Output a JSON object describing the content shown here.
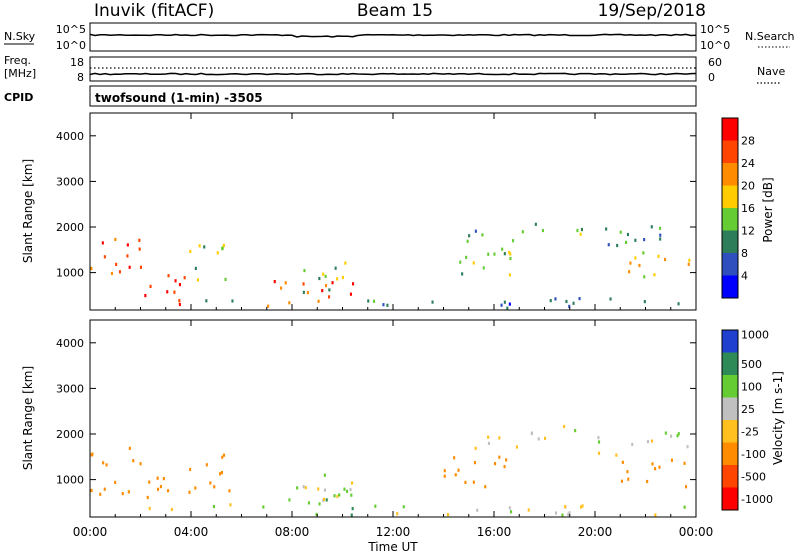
{
  "header": {
    "station": "Inuvik (fitACF)",
    "beam": "Beam 15",
    "date": "19/Sep/2018"
  },
  "nsky": {
    "label": "N.Sky",
    "top_tick": "10^5",
    "bottom_tick": "10^0"
  },
  "nsearch": {
    "label": "N.Search",
    "top_tick": "10^5",
    "bottom_tick": "10^0"
  },
  "freq": {
    "label_line1": "Freq.",
    "label_line2": "[MHz]",
    "top_tick": "18",
    "bottom_tick": "8"
  },
  "nave": {
    "label": "Nave",
    "top_tick": "60",
    "bottom_tick": "0"
  },
  "cpid": {
    "label": "CPID",
    "mode": "twofsound (1-min) -3505"
  },
  "colors": {
    "power": [
      "#0000ff",
      "#2f4fbf",
      "#2e7d5a",
      "#66cc33",
      "#ffcc00",
      "#ff8c00",
      "#ff4500",
      "#ff0000"
    ],
    "velocity": [
      "#2040d0",
      "#2e8b57",
      "#66cc33",
      "#c0c0c0",
      "#ffc020",
      "#ff8c00",
      "#ff4500",
      "#ff0000"
    ]
  },
  "chart_data": [
    {
      "type": "heatmap",
      "name": "power",
      "ylabel": "Slant Range [km]",
      "xlim": [
        0,
        24
      ],
      "ylim": [
        180,
        4500
      ],
      "y_ticks": [
        1000,
        2000,
        3000,
        4000
      ],
      "colorbar": {
        "label": "Power [dB]",
        "ticks": [
          4,
          8,
          12,
          16,
          20,
          24,
          28
        ],
        "range": [
          0,
          32
        ]
      },
      "scatter_regions": [
        {
          "t": [
            0.0,
            2.0
          ],
          "r": [
            600,
            1700
          ],
          "power": 26
        },
        {
          "t": [
            2.0,
            3.9
          ],
          "r": [
            180,
            1000
          ],
          "power": 27
        },
        {
          "t": [
            3.9,
            5.8
          ],
          "r": [
            700,
            1600
          ],
          "power": 16
        },
        {
          "t": [
            4.5,
            6.0
          ],
          "r": [
            180,
            450
          ],
          "power": 14
        },
        {
          "t": [
            6.8,
            10.6
          ],
          "r": [
            180,
            800
          ],
          "power": 25
        },
        {
          "t": [
            8.3,
            10.6
          ],
          "r": [
            500,
            1200
          ],
          "power": 14
        },
        {
          "t": [
            14.8,
            17.0
          ],
          "r": [
            1650,
            2000
          ],
          "power": 10
        },
        {
          "t": [
            17.0,
            20.0
          ],
          "r": [
            1800,
            2150
          ],
          "power": 12
        },
        {
          "t": [
            14.0,
            17.0
          ],
          "r": [
            800,
            1500
          ],
          "power": 14
        },
        {
          "t": [
            20.0,
            24.0
          ],
          "r": [
            1500,
            2000
          ],
          "power": 11
        },
        {
          "t": [
            21.0,
            24.0
          ],
          "r": [
            800,
            1400
          ],
          "power": 18
        },
        {
          "t": [
            10.6,
            24.0
          ],
          "r": [
            180,
            400
          ],
          "power": 8
        }
      ]
    },
    {
      "type": "heatmap",
      "name": "velocity",
      "xlabel": "Time UT",
      "ylabel": "Slant Range [km]",
      "xlim": [
        0,
        24
      ],
      "ylim": [
        180,
        4500
      ],
      "x_ticks": [
        "00:00",
        "04:00",
        "08:00",
        "12:00",
        "16:00",
        "20:00",
        "00:00"
      ],
      "y_ticks": [
        1000,
        2000,
        3000,
        4000
      ],
      "colorbar": {
        "label": "Velocity [m s-1]",
        "ticks": [
          "1000",
          "500",
          "100",
          "25",
          "-25",
          "-100",
          "-500",
          "-1000"
        ]
      },
      "scatter_regions": [
        {
          "t": [
            0.0,
            2.0
          ],
          "r": [
            600,
            1700
          ],
          "velocity": -300
        },
        {
          "t": [
            2.0,
            3.9
          ],
          "r": [
            180,
            1000
          ],
          "velocity": -150
        },
        {
          "t": [
            3.9,
            5.8
          ],
          "r": [
            700,
            1600
          ],
          "velocity": -200
        },
        {
          "t": [
            4.5,
            6.0
          ],
          "r": [
            180,
            450
          ],
          "velocity": 0
        },
        {
          "t": [
            6.8,
            10.6
          ],
          "r": [
            180,
            800
          ],
          "velocity": 50
        },
        {
          "t": [
            8.3,
            10.6
          ],
          "r": [
            500,
            1200
          ],
          "velocity": 0
        },
        {
          "t": [
            14.8,
            17.0
          ],
          "r": [
            1650,
            2000
          ],
          "velocity": 0
        },
        {
          "t": [
            17.0,
            20.0
          ],
          "r": [
            1800,
            2150
          ],
          "velocity": 0
        },
        {
          "t": [
            14.0,
            17.0
          ],
          "r": [
            800,
            1500
          ],
          "velocity": -200
        },
        {
          "t": [
            20.0,
            24.0
          ],
          "r": [
            1500,
            2000
          ],
          "velocity": 0
        },
        {
          "t": [
            21.0,
            24.0
          ],
          "r": [
            800,
            1400
          ],
          "velocity": -300
        },
        {
          "t": [
            10.6,
            24.0
          ],
          "r": [
            180,
            400
          ],
          "velocity": 0
        }
      ]
    }
  ]
}
